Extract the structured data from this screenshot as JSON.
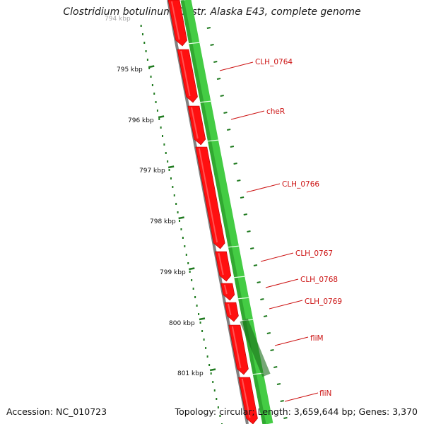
{
  "header": {
    "title": "Clostridium botulinum E3 str. Alaska E43, complete genome"
  },
  "footer": {
    "accession": "Accession: NC_010723",
    "topology": "Topology: circular; Length: 3,659,644 bp; Genes: 3,370"
  },
  "colors": {
    "backbone": "#808080",
    "forward_gene": "#ff0000",
    "reverse_gene": "#33cc33",
    "tick": "#1f7a1f",
    "label": "#cc1111"
  },
  "scale_ticks": [
    {
      "label": "794 kbp"
    },
    {
      "label": "795 kbp"
    },
    {
      "label": "796 kbp"
    },
    {
      "label": "797 kbp"
    },
    {
      "label": "798 kbp"
    },
    {
      "label": "799 kbp"
    },
    {
      "label": "800 kbp"
    },
    {
      "label": "801 kbp"
    }
  ],
  "gene_labels": [
    {
      "name": "CLH_0764"
    },
    {
      "name": "cheR"
    },
    {
      "name": "CLH_0766"
    },
    {
      "name": "CLH_0767"
    },
    {
      "name": "CLH_0768"
    },
    {
      "name": "CLH_0769"
    },
    {
      "name": "fliM"
    },
    {
      "name": "fliN"
    }
  ]
}
